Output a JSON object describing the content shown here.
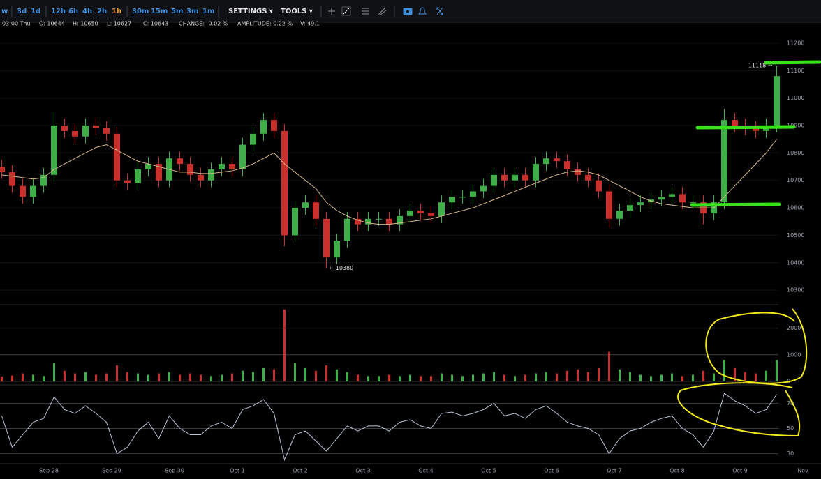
{
  "toolbar": {
    "timeframes": [
      "w",
      "3d",
      "1d",
      "12h",
      "6h",
      "4h",
      "2h",
      "1h",
      "30m",
      "15m",
      "5m",
      "3m",
      "1m"
    ],
    "menus": [
      "SETTINGS ▾",
      "TOOLS ▾"
    ]
  },
  "info_bar": [
    "03:00 Thu",
    "O: 10644",
    "H: 10650",
    "L: 10627",
    "C: 10643",
    "CHANGE: -0.02 %",
    "AMPLITUDE: 0.22 %",
    "V: 49.1"
  ],
  "chart_data": [
    {
      "type": "candlestick",
      "categories": [
        null,
        null,
        null,
        null,
        null,
        "Sep 28",
        null,
        null,
        null,
        null,
        null,
        "Sep 29",
        null,
        null,
        null,
        null,
        null,
        "Sep 30",
        null,
        null,
        null,
        null,
        null,
        "Oct 1",
        null,
        null,
        null,
        null,
        null,
        "Oct 2",
        null,
        null,
        null,
        null,
        null,
        "Oct 3",
        null,
        null,
        null,
        null,
        null,
        "Oct 4",
        null,
        null,
        null,
        null,
        null,
        "Oct 5",
        null,
        null,
        null,
        null,
        null,
        "Oct 6",
        null,
        null,
        null,
        null,
        null,
        "Oct 7",
        null,
        null,
        null,
        null,
        null,
        "Oct 8",
        null,
        null,
        null,
        null,
        null,
        "Oct 9",
        null,
        null,
        null,
        null,
        null,
        "Nov"
      ],
      "open": [
        10750,
        10730,
        10680,
        10640,
        10680,
        10720,
        10900,
        10880,
        10860,
        10900,
        10890,
        10870,
        10700,
        10690,
        10740,
        10760,
        10700,
        10780,
        10760,
        10720,
        10700,
        10740,
        10760,
        10740,
        10830,
        10870,
        10920,
        10880,
        10500,
        10600,
        10620,
        10560,
        10420,
        10480,
        10560,
        10540,
        10560,
        10560,
        10540,
        10570,
        10590,
        10580,
        10570,
        10620,
        10640,
        10640,
        10660,
        10680,
        10720,
        10700,
        10720,
        10700,
        10760,
        10780,
        10770,
        10740,
        10720,
        10700,
        10660,
        10560,
        10590,
        10610,
        10620,
        10630,
        10640,
        10650,
        10620,
        10620,
        10580,
        10620,
        10920,
        10900,
        10890,
        10880,
        10900,
        null,
        null,
        null
      ],
      "high": [
        10775,
        10755,
        10705,
        10705,
        10745,
        10950,
        10925,
        10905,
        10925,
        10925,
        10915,
        10895,
        10725,
        10765,
        10785,
        10785,
        10805,
        10805,
        10785,
        10745,
        10765,
        10785,
        10785,
        10855,
        10895,
        10945,
        10945,
        10905,
        10625,
        10645,
        10645,
        10585,
        10505,
        10585,
        10585,
        10585,
        10585,
        10585,
        10595,
        10615,
        10615,
        10605,
        10645,
        10665,
        10665,
        10685,
        10705,
        10745,
        10745,
        10745,
        10745,
        10785,
        10805,
        10805,
        10795,
        10765,
        10745,
        10725,
        10685,
        10615,
        10635,
        10645,
        10655,
        10665,
        10675,
        10675,
        10645,
        10645,
        10645,
        10960,
        10945,
        10925,
        10915,
        10925,
        11118,
        null,
        null,
        null
      ],
      "low": [
        10705,
        10655,
        10615,
        10615,
        10655,
        10695,
        10855,
        10835,
        10835,
        10865,
        10845,
        10675,
        10665,
        10665,
        10715,
        10675,
        10675,
        10735,
        10695,
        10675,
        10675,
        10715,
        10715,
        10715,
        10805,
        10845,
        10855,
        10460,
        10475,
        10575,
        10535,
        10380,
        10395,
        10455,
        10515,
        10515,
        10535,
        10515,
        10515,
        10545,
        10555,
        10545,
        10545,
        10595,
        10615,
        10615,
        10635,
        10655,
        10675,
        10675,
        10675,
        10675,
        10735,
        10745,
        10715,
        10695,
        10675,
        10635,
        10530,
        10535,
        10565,
        10585,
        10595,
        10605,
        10615,
        10595,
        10595,
        10540,
        10555,
        10595,
        10875,
        10865,
        10855,
        10855,
        10875,
        null,
        null,
        null
      ],
      "close": [
        10730,
        10680,
        10640,
        10680,
        10720,
        10900,
        10880,
        10860,
        10900,
        10890,
        10870,
        10700,
        10690,
        10740,
        10760,
        10700,
        10780,
        10760,
        10720,
        10700,
        10740,
        10760,
        10740,
        10830,
        10870,
        10920,
        10880,
        10500,
        10600,
        10620,
        10560,
        10420,
        10480,
        10560,
        10540,
        10560,
        10560,
        10540,
        10570,
        10590,
        10580,
        10570,
        10620,
        10640,
        10640,
        10660,
        10680,
        10720,
        10700,
        10720,
        10700,
        10760,
        10780,
        10770,
        10740,
        10720,
        10700,
        10660,
        10560,
        10590,
        10610,
        10620,
        10630,
        10640,
        10650,
        10620,
        10620,
        10580,
        10620,
        10920,
        10900,
        10890,
        10880,
        10900,
        11080,
        null,
        null,
        null
      ],
      "moving_average": {
        "color": "#d8b98a",
        "values": [
          10720,
          10715,
          10710,
          10705,
          10710,
          10740,
          10760,
          10780,
          10800,
          10820,
          10830,
          10810,
          10790,
          10770,
          10760,
          10750,
          10740,
          10730,
          10730,
          10725,
          10725,
          10730,
          10735,
          10745,
          10760,
          10780,
          10800,
          10760,
          10730,
          10700,
          10670,
          10620,
          10590,
          10570,
          10555,
          10545,
          10540,
          10540,
          10545,
          10550,
          10555,
          10560,
          10570,
          10580,
          10590,
          10600,
          10615,
          10630,
          10645,
          10660,
          10675,
          10690,
          10705,
          10720,
          10730,
          10735,
          10730,
          10720,
          10700,
          10680,
          10660,
          10640,
          10625,
          10615,
          10610,
          10605,
          10600,
          10600,
          10600,
          10640,
          10680,
          10720,
          10760,
          10800,
          10850,
          null,
          null,
          null
        ]
      },
      "up_color": "#3fae49",
      "down_color": "#c9302c",
      "annotations": [
        "11118 →",
        "← 10380"
      ],
      "ylim": [
        10247,
        11243
      ],
      "yticks": [
        10300,
        10400,
        10500,
        10600,
        10700,
        10800,
        10900,
        11000,
        11100,
        11200
      ]
    },
    {
      "type": "bar",
      "values": [
        180,
        220,
        300,
        250,
        200,
        700,
        400,
        300,
        350,
        250,
        300,
        600,
        350,
        300,
        250,
        300,
        350,
        250,
        300,
        250,
        200,
        250,
        300,
        400,
        350,
        500,
        450,
        2700,
        700,
        500,
        400,
        600,
        450,
        350,
        250,
        200,
        200,
        250,
        200,
        250,
        200,
        200,
        300,
        250,
        200,
        250,
        300,
        350,
        250,
        200,
        250,
        300,
        350,
        300,
        400,
        450,
        350,
        500,
        1100,
        450,
        350,
        250,
        200,
        250,
        300,
        200,
        250,
        400,
        300,
        800,
        500,
        350,
        300,
        400,
        800,
        null,
        null,
        null
      ],
      "ylim": [
        0,
        2800
      ],
      "yticks": [
        0,
        1000,
        2000
      ]
    },
    {
      "type": "line",
      "color": "#b9c3d6",
      "values": [
        60,
        35,
        45,
        55,
        58,
        75,
        65,
        62,
        68,
        62,
        55,
        30,
        35,
        48,
        55,
        42,
        60,
        50,
        45,
        45,
        52,
        55,
        50,
        65,
        68,
        73,
        62,
        25,
        45,
        48,
        40,
        32,
        42,
        52,
        48,
        52,
        52,
        48,
        55,
        57,
        52,
        50,
        62,
        63,
        60,
        62,
        65,
        70,
        60,
        62,
        58,
        65,
        68,
        62,
        55,
        52,
        50,
        45,
        30,
        42,
        48,
        50,
        55,
        58,
        60,
        50,
        45,
        35,
        48,
        78,
        72,
        68,
        62,
        65,
        77,
        null,
        null,
        null
      ],
      "ylim": [
        22,
        83
      ],
      "yticks": [
        30,
        50,
        70
      ]
    }
  ]
}
